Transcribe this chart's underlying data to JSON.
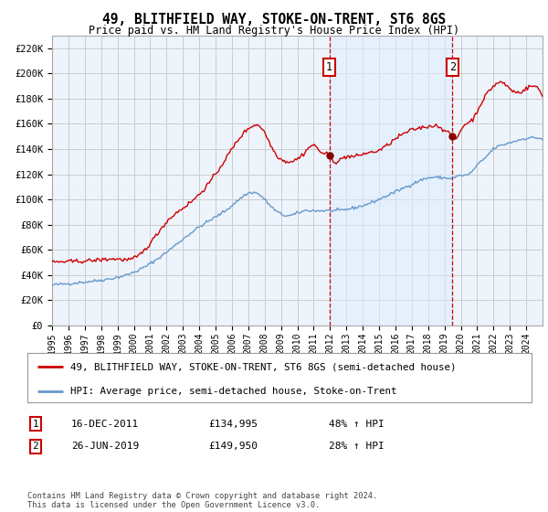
{
  "title": "49, BLITHFIELD WAY, STOKE-ON-TRENT, ST6 8GS",
  "subtitle": "Price paid vs. HM Land Registry's House Price Index (HPI)",
  "ylabel_ticks": [
    "£0",
    "£20K",
    "£40K",
    "£60K",
    "£80K",
    "£100K",
    "£120K",
    "£140K",
    "£160K",
    "£180K",
    "£200K",
    "£220K"
  ],
  "ylabel_values": [
    0,
    20000,
    40000,
    60000,
    80000,
    100000,
    120000,
    140000,
    160000,
    180000,
    200000,
    220000
  ],
  "ylim": [
    0,
    230000
  ],
  "xlim_start": 1995.0,
  "xlim_end": 2025.0,
  "xtick_years": [
    1995,
    1996,
    1997,
    1998,
    1999,
    2000,
    2001,
    2002,
    2003,
    2004,
    2005,
    2006,
    2007,
    2008,
    2009,
    2010,
    2011,
    2012,
    2013,
    2014,
    2015,
    2016,
    2017,
    2018,
    2019,
    2020,
    2021,
    2022,
    2023,
    2024
  ],
  "marker1_x": 2011.96,
  "marker1_y": 134995,
  "marker1_label": "1",
  "marker1_date": "16-DEC-2011",
  "marker1_price": "£134,995",
  "marker1_hpi": "48% ↑ HPI",
  "marker2_x": 2019.48,
  "marker2_y": 149950,
  "marker2_label": "2",
  "marker2_date": "26-JUN-2019",
  "marker2_price": "£149,950",
  "marker2_hpi": "28% ↑ HPI",
  "red_line_color": "#cc0000",
  "blue_line_color": "#6699cc",
  "shade_color": "#ddeeff",
  "grid_color": "#cccccc",
  "background_color": "#eef4fb",
  "legend_red_label": "49, BLITHFIELD WAY, STOKE-ON-TRENT, ST6 8GS (semi-detached house)",
  "legend_blue_label": "HPI: Average price, semi-detached house, Stoke-on-Trent",
  "footer": "Contains HM Land Registry data © Crown copyright and database right 2024.\nThis data is licensed under the Open Government Licence v3.0.",
  "fig_width": 6.0,
  "fig_height": 5.6,
  "dpi": 100
}
